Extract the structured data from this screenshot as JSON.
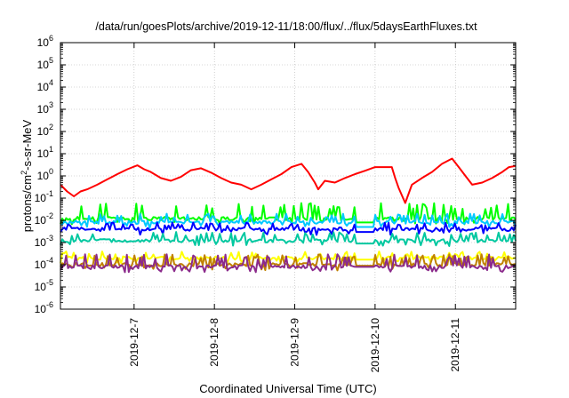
{
  "chart_data": {
    "type": "line",
    "title": "/data/run/goesPlots/archive/2019-12-11/18:00/flux/../flux/5daysEarthFluxes.txt",
    "xlabel": "Coordinated Universal Time (UTC)",
    "ylabel": {
      "prefix": "protons/cm",
      "sup": "2",
      "suffix": "-s-sr-MeV"
    },
    "xlim": [
      "2019-12-06T02:00",
      "2019-12-11T18:00"
    ],
    "ylim": [
      1e-06,
      1000000.0
    ],
    "yscale": "log",
    "grid": true,
    "x_ticks": [
      {
        "value": "2019-12-07T00:00",
        "label": "2019-12-7"
      },
      {
        "value": "2019-12-08T00:00",
        "label": "2019-12-8"
      },
      {
        "value": "2019-12-09T00:00",
        "label": "2019-12-9"
      },
      {
        "value": "2019-12-10T00:00",
        "label": "2019-12-10"
      },
      {
        "value": "2019-12-11T00:00",
        "label": "2019-12-11"
      }
    ],
    "y_ticks": [
      {
        "value": 1e-06,
        "base": "10",
        "exp": "-6"
      },
      {
        "value": 1e-05,
        "base": "10",
        "exp": "-5"
      },
      {
        "value": 0.0001,
        "base": "10",
        "exp": "-4"
      },
      {
        "value": 0.001,
        "base": "10",
        "exp": "-3"
      },
      {
        "value": 0.01,
        "base": "10",
        "exp": "-2"
      },
      {
        "value": 0.1,
        "base": "10",
        "exp": "-1"
      },
      {
        "value": 1,
        "base": "10",
        "exp": "0"
      },
      {
        "value": 10,
        "base": "10",
        "exp": "1"
      },
      {
        "value": 100,
        "base": "10",
        "exp": "2"
      },
      {
        "value": 1000,
        "base": "10",
        "exp": "3"
      },
      {
        "value": 10000,
        "base": "10",
        "exp": "4"
      },
      {
        "value": 100000,
        "base": "10",
        "exp": "5"
      },
      {
        "value": 1000000,
        "base": "10",
        "exp": "6"
      }
    ],
    "series": [
      {
        "color": "#ff0000",
        "width": 2,
        "points": [
          [
            "2019-12-06T02:00",
            0.4
          ],
          [
            "2019-12-06T04:00",
            0.2
          ],
          [
            "2019-12-06T06:00",
            0.12
          ],
          [
            "2019-12-06T08:00",
            0.2
          ],
          [
            "2019-12-06T10:00",
            0.25
          ],
          [
            "2019-12-06T13:00",
            0.4
          ],
          [
            "2019-12-06T16:00",
            0.7
          ],
          [
            "2019-12-06T19:00",
            1.2
          ],
          [
            "2019-12-06T22:00",
            2.0
          ],
          [
            "2019-12-07T01:00",
            3.0
          ],
          [
            "2019-12-07T03:00",
            2.0
          ],
          [
            "2019-12-07T05:00",
            1.5
          ],
          [
            "2019-12-07T08:00",
            0.8
          ],
          [
            "2019-12-07T11:00",
            0.6
          ],
          [
            "2019-12-07T14:00",
            0.9
          ],
          [
            "2019-12-07T17:00",
            1.8
          ],
          [
            "2019-12-07T20:00",
            2.2
          ],
          [
            "2019-12-07T23:00",
            1.4
          ],
          [
            "2019-12-08T02:00",
            0.8
          ],
          [
            "2019-12-08T05:00",
            0.5
          ],
          [
            "2019-12-08T08:00",
            0.4
          ],
          [
            "2019-12-08T11:00",
            0.25
          ],
          [
            "2019-12-08T14:00",
            0.4
          ],
          [
            "2019-12-08T17:00",
            0.7
          ],
          [
            "2019-12-08T20:00",
            1.2
          ],
          [
            "2019-12-08T23:00",
            2.5
          ],
          [
            "2019-12-09T02:00",
            3.5
          ],
          [
            "2019-12-09T04:00",
            1.5
          ],
          [
            "2019-12-09T06:00",
            0.5
          ],
          [
            "2019-12-09T07:00",
            0.25
          ],
          [
            "2019-12-09T09:00",
            0.6
          ],
          [
            "2019-12-09T12:00",
            0.5
          ],
          [
            "2019-12-09T15:00",
            0.8
          ],
          [
            "2019-12-09T18:00",
            1.2
          ],
          [
            "2019-12-09T21:00",
            1.7
          ],
          [
            "2019-12-10T00:00",
            2.5
          ],
          [
            "2019-12-10T03:00",
            2.5
          ],
          [
            "2019-12-10T05:00",
            2.5
          ],
          [
            "2019-12-10T06:00",
            0.8
          ],
          [
            "2019-12-10T07:00",
            0.3
          ],
          [
            "2019-12-10T09:00",
            0.06
          ],
          [
            "2019-12-10T11:00",
            0.4
          ],
          [
            "2019-12-10T14:00",
            0.8
          ],
          [
            "2019-12-10T17:00",
            1.5
          ],
          [
            "2019-12-10T20:00",
            3.5
          ],
          [
            "2019-12-10T23:00",
            6.0
          ],
          [
            "2019-12-11T01:00",
            2.5
          ],
          [
            "2019-12-11T03:00",
            1.0
          ],
          [
            "2019-12-11T05:00",
            0.4
          ],
          [
            "2019-12-11T08:00",
            0.5
          ],
          [
            "2019-12-11T11:00",
            0.8
          ],
          [
            "2019-12-11T14:00",
            1.5
          ],
          [
            "2019-12-11T16:00",
            2.5
          ],
          [
            "2019-12-11T18:00",
            2.8
          ]
        ]
      },
      {
        "color": "#00ff00",
        "width": 2,
        "base": 0.012,
        "spike": 0.06,
        "gap": [
          "2019-12-09T18:00",
          "2019-12-10T00:00"
        ],
        "gap_value": 0.008
      },
      {
        "color": "#00c8ff",
        "width": 2,
        "base": 0.008,
        "spike": 0.02,
        "gap": [
          "2019-12-09T18:00",
          "2019-12-10T00:00"
        ],
        "gap_value": 0.005
      },
      {
        "color": "#0000ff",
        "width": 2,
        "base": 0.004,
        "spike": 0.008,
        "gap": [
          "2019-12-09T18:00",
          "2019-12-10T00:00"
        ],
        "gap_value": 0.003
      },
      {
        "color": "#00c8a0",
        "width": 2,
        "base": 0.0012,
        "spike": 0.003,
        "gap": [
          "2019-12-09T18:00",
          "2019-12-10T00:00"
        ],
        "gap_value": 0.0009
      },
      {
        "color": "#ffff00",
        "width": 2,
        "base": 0.0002,
        "spike": 0.0004,
        "gap": [
          "2019-12-09T18:00",
          "2019-12-10T00:00"
        ],
        "gap_value": 0.00017
      },
      {
        "color": "#c08000",
        "width": 2,
        "base": 0.0001,
        "spike": 0.0003,
        "gap": [
          "2019-12-09T18:00",
          "2019-12-10T00:00"
        ],
        "gap_value": 9e-05
      },
      {
        "color": "#8b2a8b",
        "width": 2,
        "base": 8e-05,
        "spike": 0.0003,
        "gap": [
          "2019-12-09T18:00",
          "2019-12-10T00:00"
        ],
        "gap_value": 8e-05
      }
    ]
  }
}
